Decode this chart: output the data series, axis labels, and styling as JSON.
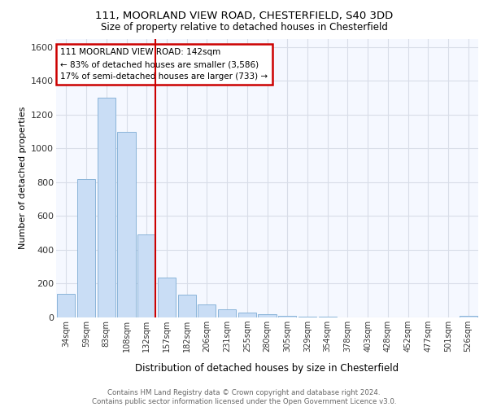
{
  "title_line1": "111, MOORLAND VIEW ROAD, CHESTERFIELD, S40 3DD",
  "title_line2": "Size of property relative to detached houses in Chesterfield",
  "xlabel": "Distribution of detached houses by size in Chesterfield",
  "ylabel": "Number of detached properties",
  "categories": [
    "34sqm",
    "59sqm",
    "83sqm",
    "108sqm",
    "132sqm",
    "157sqm",
    "182sqm",
    "206sqm",
    "231sqm",
    "255sqm",
    "280sqm",
    "305sqm",
    "329sqm",
    "354sqm",
    "378sqm",
    "403sqm",
    "428sqm",
    "452sqm",
    "477sqm",
    "501sqm",
    "526sqm"
  ],
  "values": [
    140,
    820,
    1300,
    1100,
    490,
    235,
    135,
    75,
    50,
    30,
    20,
    12,
    5,
    3,
    2,
    1,
    1,
    1,
    1,
    0,
    10
  ],
  "bar_color": "#c9ddf5",
  "bar_edge_color": "#8ab4d9",
  "vline_color": "#cc0000",
  "annotation_text": "111 MOORLAND VIEW ROAD: 142sqm\n← 83% of detached houses are smaller (3,586)\n17% of semi-detached houses are larger (733) →",
  "annotation_box_color": "#cc0000",
  "ylim": [
    0,
    1650
  ],
  "yticks": [
    0,
    200,
    400,
    600,
    800,
    1000,
    1200,
    1400,
    1600
  ],
  "bg_color": "#f5f8ff",
  "grid_color": "#d8dde8",
  "footer_line1": "Contains HM Land Registry data © Crown copyright and database right 2024.",
  "footer_line2": "Contains public sector information licensed under the Open Government Licence v3.0."
}
